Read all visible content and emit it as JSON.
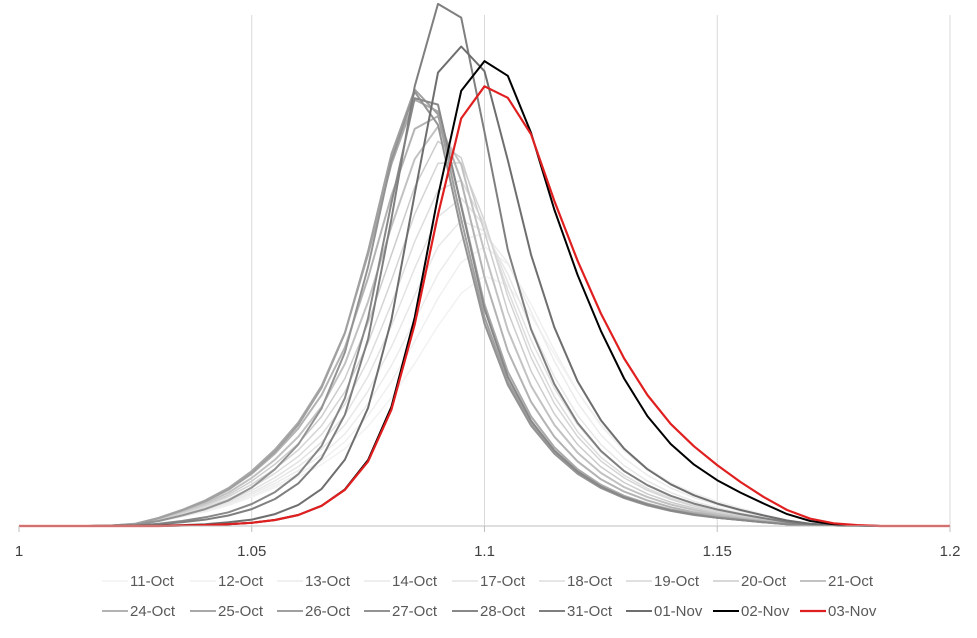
{
  "chart_data": {
    "type": "line",
    "title": "",
    "xlabel": "",
    "ylabel": "",
    "xlim": [
      1,
      1.2
    ],
    "x_ticks": [
      {
        "value": 1,
        "label": "1"
      },
      {
        "value": 1.05,
        "label": "1.05"
      },
      {
        "value": 1.1,
        "label": "1.1"
      },
      {
        "value": 1.15,
        "label": "1.15"
      },
      {
        "value": 1.2,
        "label": "1.2"
      }
    ],
    "ylim": [
      0,
      100
    ],
    "y_axis_visible": false,
    "vertical_grid": true,
    "legend_position": "bottom",
    "x": [
      1.0,
      1.005,
      1.01,
      1.015,
      1.02,
      1.025,
      1.03,
      1.035,
      1.04,
      1.045,
      1.05,
      1.055,
      1.06,
      1.065,
      1.07,
      1.075,
      1.08,
      1.085,
      1.09,
      1.095,
      1.1,
      1.105,
      1.11,
      1.115,
      1.12,
      1.125,
      1.13,
      1.135,
      1.14,
      1.145,
      1.15,
      1.155,
      1.16,
      1.165,
      1.17,
      1.175,
      1.18,
      1.185,
      1.19,
      1.195,
      1.2
    ],
    "series": [
      {
        "name": "11-Oct",
        "color": "#f2f2f2",
        "width": 1.5,
        "values": [
          0,
          0,
          0,
          0,
          0.1,
          0.3,
          1.0,
          2.0,
          3.1,
          4.5,
          6.3,
          8.4,
          10.7,
          13.4,
          16.9,
          21.8,
          28.0,
          35.5,
          43.7,
          50.8,
          54.6,
          52.5,
          45.9,
          37.5,
          29.3,
          22.3,
          16.8,
          12.7,
          9.5,
          7.2,
          5.4,
          3.9,
          2.5,
          1.3,
          0.5,
          0.2,
          0.1,
          0,
          0,
          0,
          0
        ]
      },
      {
        "name": "12-Oct",
        "color": "#f0f0f0",
        "width": 1.5,
        "values": [
          0,
          0,
          0,
          0,
          0.1,
          0.3,
          1.1,
          2.1,
          3.2,
          4.6,
          6.5,
          8.8,
          11.3,
          14.3,
          18.4,
          24.1,
          31.5,
          40.3,
          49.7,
          57.6,
          61.0,
          57.2,
          48.4,
          38.4,
          29.3,
          21.9,
          16.4,
          12.3,
          9.3,
          7.0,
          5.3,
          3.8,
          2.5,
          1.3,
          0.5,
          0.2,
          0.1,
          0,
          0,
          0,
          0
        ]
      },
      {
        "name": "13-Oct",
        "color": "#ececec",
        "width": 1.5,
        "values": [
          0,
          0,
          0,
          0,
          0.1,
          0.3,
          1.1,
          2.2,
          3.4,
          4.9,
          6.9,
          9.3,
          12.1,
          15.5,
          20.1,
          26.7,
          35.0,
          44.9,
          55.0,
          62.4,
          63.9,
          57.5,
          46.8,
          36.0,
          26.9,
          19.9,
          14.8,
          11.1,
          8.3,
          6.2,
          4.6,
          3.2,
          2.1,
          1.1,
          0.4,
          0.2,
          0.1,
          0,
          0,
          0,
          0
        ]
      },
      {
        "name": "14-Oct",
        "color": "#e8e8e8",
        "width": 1.5,
        "values": [
          0,
          0,
          0,
          0,
          0.1,
          0.3,
          1.2,
          2.3,
          3.6,
          5.2,
          7.3,
          9.9,
          13.0,
          16.8,
          22.1,
          29.5,
          39.1,
          50.4,
          61.0,
          66.7,
          64.4,
          55.0,
          43.2,
          32.6,
          24.1,
          17.8,
          13.2,
          9.8,
          7.3,
          5.4,
          4.0,
          2.8,
          1.8,
          0.9,
          0.4,
          0.1,
          0.1,
          0,
          0,
          0,
          0
        ]
      },
      {
        "name": "17-Oct",
        "color": "#e3e3e3",
        "width": 1.5,
        "values": [
          0,
          0,
          0,
          0,
          0.1,
          0.4,
          1.2,
          2.4,
          3.8,
          5.5,
          7.8,
          10.6,
          14.0,
          18.3,
          24.2,
          32.7,
          43.7,
          56.3,
          67.5,
          71.6,
          65.6,
          53.2,
          40.6,
          30.1,
          22.1,
          16.2,
          12.0,
          8.9,
          6.6,
          4.9,
          3.6,
          2.5,
          1.6,
          0.8,
          0.3,
          0.1,
          0.1,
          0,
          0,
          0,
          0
        ]
      },
      {
        "name": "18-Oct",
        "color": "#dddddd",
        "width": 1.5,
        "values": [
          0,
          0,
          0,
          0,
          0.1,
          0.4,
          1.3,
          2.6,
          4.1,
          5.9,
          8.4,
          11.5,
          15.2,
          20.0,
          26.6,
          36.2,
          48.5,
          62.1,
          73.3,
          75.5,
          65.9,
          51.5,
          38.5,
          28.3,
          20.6,
          15.0,
          11.1,
          8.2,
          6.1,
          4.5,
          3.3,
          2.3,
          1.5,
          0.8,
          0.3,
          0.1,
          0,
          0,
          0,
          0,
          0
        ]
      },
      {
        "name": "19-Oct",
        "color": "#d5d5d5",
        "width": 1.5,
        "values": [
          0,
          0,
          0,
          0,
          0.1,
          0.4,
          1.4,
          2.8,
          4.4,
          6.4,
          9.1,
          12.5,
          16.6,
          21.9,
          29.3,
          40.0,
          53.6,
          68.1,
          79.2,
          79.3,
          66.7,
          50.1,
          36.8,
          26.8,
          19.5,
          14.2,
          10.5,
          7.8,
          5.8,
          4.3,
          3.1,
          2.2,
          1.4,
          0.7,
          0.3,
          0.1,
          0,
          0,
          0,
          0,
          0
        ]
      },
      {
        "name": "20-Oct",
        "color": "#cccccc",
        "width": 1.5,
        "values": [
          0,
          0,
          0,
          0,
          0.1,
          0.4,
          1.5,
          3.0,
          4.7,
          6.8,
          9.8,
          13.5,
          18.0,
          23.9,
          32.2,
          44.3,
          59.2,
          74.0,
          84.0,
          80.4,
          64.2,
          46.8,
          33.8,
          24.5,
          17.8,
          12.9,
          9.5,
          7.0,
          5.2,
          3.9,
          2.8,
          2.0,
          1.3,
          0.7,
          0.3,
          0.1,
          0,
          0,
          0,
          0,
          0
        ]
      },
      {
        "name": "21-Oct",
        "color": "#c2c2c2",
        "width": 2,
        "values": [
          0,
          0,
          0,
          0,
          0.1,
          0.4,
          1.6,
          3.2,
          5.0,
          7.3,
          10.5,
          14.5,
          19.5,
          26.0,
          35.4,
          49.0,
          65.4,
          80.1,
          87.2,
          78.9,
          59.8,
          42.8,
          30.6,
          22.1,
          16.0,
          11.6,
          8.5,
          6.3,
          4.7,
          3.5,
          2.5,
          1.8,
          1.2,
          0.6,
          0.2,
          0.1,
          0,
          0,
          0,
          0,
          0
        ]
      },
      {
        "name": "24-Oct",
        "color": "#b3b3b3",
        "width": 2,
        "values": [
          0,
          0,
          0,
          0,
          0.1,
          0.5,
          1.7,
          3.4,
          5.4,
          7.9,
          11.4,
          15.8,
          21.3,
          28.6,
          39.0,
          54.2,
          72.1,
          86.7,
          89.5,
          75.3,
          54.3,
          38.2,
          27.1,
          19.5,
          14.1,
          10.2,
          7.5,
          5.6,
          4.1,
          3.0,
          2.2,
          1.6,
          1.0,
          0.5,
          0.2,
          0.1,
          0,
          0,
          0,
          0,
          0
        ]
      },
      {
        "name": "25-Oct",
        "color": "#a8a8a8",
        "width": 2,
        "values": [
          0,
          0,
          0,
          0,
          0.1,
          0.5,
          1.8,
          3.5,
          5.6,
          8.3,
          12.0,
          16.7,
          22.6,
          30.6,
          42.2,
          59.3,
          79.0,
          93.1,
          90.5,
          70.1,
          48.4,
          33.7,
          23.9,
          17.2,
          12.4,
          9.0,
          6.6,
          4.9,
          3.6,
          2.7,
          1.9,
          1.4,
          0.9,
          0.5,
          0.2,
          0.1,
          0,
          0,
          0,
          0,
          0
        ]
      },
      {
        "name": "26-Oct",
        "color": "#a0a0a0",
        "width": 2,
        "values": [
          0,
          0,
          0,
          0,
          0.1,
          0.4,
          1.7,
          3.4,
          5.4,
          8.0,
          11.6,
          16.2,
          22.1,
          30.2,
          42.1,
          60.0,
          81.2,
          95.3,
          89.9,
          67.0,
          45.6,
          31.6,
          22.4,
          16.1,
          11.6,
          8.4,
          6.2,
          4.6,
          3.4,
          2.5,
          1.8,
          1.3,
          0.8,
          0.4,
          0.2,
          0.1,
          0,
          0,
          0,
          0,
          0
        ]
      },
      {
        "name": "27-Oct",
        "color": "#939393",
        "width": 2,
        "values": [
          0,
          0,
          0,
          0,
          0.1,
          0.3,
          1.1,
          2.3,
          3.7,
          5.6,
          8.4,
          12.4,
          17.8,
          25.7,
          37.9,
          56.6,
          79.8,
          94.8,
          87.6,
          64.6,
          44.2,
          30.8,
          21.9,
          15.8,
          11.4,
          8.3,
          6.1,
          4.5,
          3.3,
          2.4,
          1.8,
          1.3,
          0.8,
          0.4,
          0.2,
          0.1,
          0,
          0,
          0,
          0,
          0
        ]
      },
      {
        "name": "28-Oct",
        "color": "#888888",
        "width": 2,
        "values": [
          0,
          0,
          0,
          0,
          0,
          0.1,
          0.5,
          1.1,
          1.9,
          3.0,
          4.8,
          7.4,
          11.3,
          17.5,
          27.9,
          45.4,
          70.5,
          93.4,
          92.0,
          69.8,
          47.4,
          32.6,
          23.0,
          16.5,
          11.9,
          8.6,
          6.3,
          4.7,
          3.4,
          2.5,
          1.8,
          1.3,
          0.8,
          0.4,
          0.2,
          0.1,
          0,
          0,
          0,
          0,
          0
        ]
      },
      {
        "name": "31-Oct",
        "color": "#7f7f7f",
        "width": 2,
        "values": [
          0,
          0,
          0,
          0,
          0,
          0.1,
          0.4,
          0.8,
          1.4,
          2.3,
          3.7,
          5.9,
          9.3,
          14.8,
          24.3,
          40.8,
          67.0,
          96.0,
          114.0,
          111.0,
          86.0,
          60.3,
          42.9,
          31.0,
          22.5,
          16.4,
          12.0,
          8.9,
          6.6,
          4.9,
          3.6,
          2.6,
          1.7,
          0.9,
          0.4,
          0.2,
          0.1,
          0,
          0,
          0,
          0
        ]
      },
      {
        "name": "01-Nov",
        "color": "#6e6e6e",
        "width": 2,
        "values": [
          0,
          0,
          0,
          0,
          0,
          0,
          0.1,
          0.2,
          0.4,
          0.8,
          1.4,
          2.6,
          4.6,
          8.1,
          14.5,
          25.8,
          45.0,
          72.5,
          99.0,
          104.7,
          99.3,
          79.9,
          59.2,
          43.4,
          31.6,
          23.1,
          16.9,
          12.4,
          9.1,
          6.7,
          4.9,
          3.5,
          2.3,
          1.2,
          0.5,
          0.2,
          0.1,
          0,
          0,
          0,
          0
        ]
      },
      {
        "name": "02-Nov",
        "color": "#000000",
        "width": 2,
        "values": [
          0,
          0,
          0,
          0,
          0,
          0,
          0,
          0.1,
          0.2,
          0.4,
          0.7,
          1.3,
          2.4,
          4.4,
          8.0,
          14.4,
          26.0,
          45.5,
          72.0,
          95.0,
          101.5,
          98.3,
          85.8,
          69.1,
          54.8,
          42.6,
          32.2,
          24.0,
          17.9,
          13.4,
          10.0,
          7.3,
          4.9,
          2.6,
          1.1,
          0.4,
          0.1,
          0,
          0,
          0,
          0
        ]
      },
      {
        "name": "03-Nov",
        "color": "#e02020",
        "width": 2.2,
        "values": [
          0,
          0,
          0,
          0,
          0,
          0,
          0,
          0.1,
          0.2,
          0.4,
          0.7,
          1.3,
          2.4,
          4.4,
          7.9,
          14.1,
          25.4,
          44.0,
          68.0,
          89.0,
          96.0,
          93.5,
          85.5,
          71.0,
          57.9,
          46.4,
          36.6,
          28.6,
          22.3,
          17.4,
          13.3,
          9.6,
          6.3,
          3.5,
          1.6,
          0.6,
          0.2,
          0,
          0,
          0,
          0
        ]
      }
    ]
  }
}
